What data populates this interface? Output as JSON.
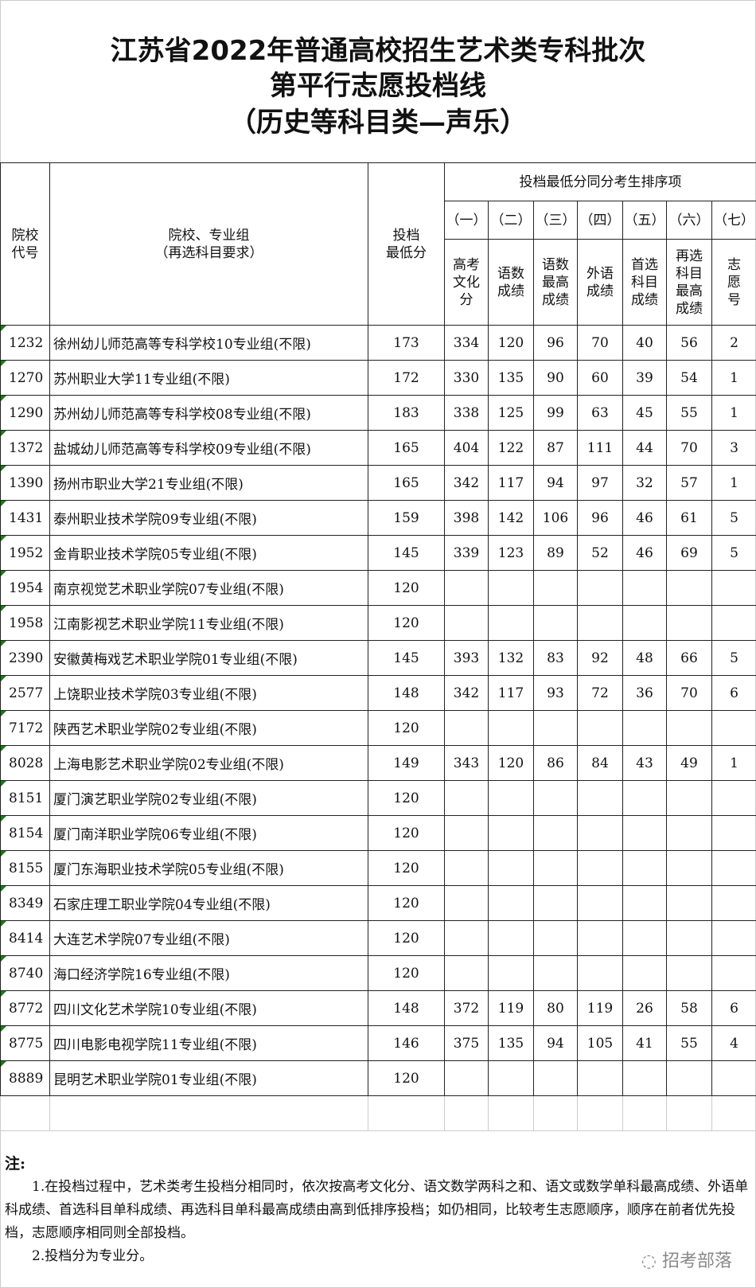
{
  "title": [
    "江苏省2022年普通高校招生艺术类专科批次",
    "第平行志愿投档线",
    "（历史等科目类—声乐）"
  ],
  "headers": {
    "code": "院校\n代号",
    "name": "院校、专业组\n（再选科目要求）",
    "min_score": "投档\n最低分",
    "tiebreak_group": "投档最低分同分考生排序项",
    "tiebreak_nums": [
      "（一）",
      "（二）",
      "（三）",
      "（四）",
      "（五）",
      "（六）",
      "（七）"
    ],
    "tiebreak_labels": [
      "高考\n文化\n分",
      "语数\n成绩",
      "语数\n最高\n成绩",
      "外语\n成绩",
      "首选\n科目\n成绩",
      "再选\n科目\n最高\n成绩",
      "志\n愿\n号"
    ]
  },
  "rows": [
    {
      "code": "1232",
      "name": "徐州幼儿师范高等专科学校10专业组(不限)",
      "score": "173",
      "t": [
        "334",
        "120",
        "96",
        "70",
        "40",
        "56",
        "2"
      ]
    },
    {
      "code": "1270",
      "name": "苏州职业大学11专业组(不限)",
      "score": "172",
      "t": [
        "330",
        "135",
        "90",
        "60",
        "39",
        "54",
        "1"
      ]
    },
    {
      "code": "1290",
      "name": "苏州幼儿师范高等专科学校08专业组(不限)",
      "score": "183",
      "t": [
        "338",
        "125",
        "99",
        "63",
        "45",
        "55",
        "1"
      ]
    },
    {
      "code": "1372",
      "name": "盐城幼儿师范高等专科学校09专业组(不限)",
      "score": "165",
      "t": [
        "404",
        "122",
        "87",
        "111",
        "44",
        "70",
        "3"
      ]
    },
    {
      "code": "1390",
      "name": "扬州市职业大学21专业组(不限)",
      "score": "165",
      "t": [
        "342",
        "117",
        "94",
        "97",
        "32",
        "57",
        "1"
      ]
    },
    {
      "code": "1431",
      "name": "泰州职业技术学院09专业组(不限)",
      "score": "159",
      "t": [
        "398",
        "142",
        "106",
        "96",
        "46",
        "61",
        "5"
      ]
    },
    {
      "code": "1952",
      "name": "金肯职业技术学院05专业组(不限)",
      "score": "145",
      "t": [
        "339",
        "123",
        "89",
        "52",
        "46",
        "69",
        "5"
      ]
    },
    {
      "code": "1954",
      "name": "南京视觉艺术职业学院07专业组(不限)",
      "score": "120",
      "t": [
        "",
        "",
        "",
        "",
        "",
        "",
        ""
      ]
    },
    {
      "code": "1958",
      "name": "江南影视艺术职业学院11专业组(不限)",
      "score": "120",
      "t": [
        "",
        "",
        "",
        "",
        "",
        "",
        ""
      ]
    },
    {
      "code": "2390",
      "name": "安徽黄梅戏艺术职业学院01专业组(不限)",
      "score": "145",
      "t": [
        "393",
        "132",
        "83",
        "92",
        "48",
        "66",
        "5"
      ]
    },
    {
      "code": "2577",
      "name": "上饶职业技术学院03专业组(不限)",
      "score": "148",
      "t": [
        "342",
        "117",
        "93",
        "72",
        "36",
        "70",
        "6"
      ]
    },
    {
      "code": "7172",
      "name": "陕西艺术职业学院02专业组(不限)",
      "score": "120",
      "t": [
        "",
        "",
        "",
        "",
        "",
        "",
        ""
      ]
    },
    {
      "code": "8028",
      "name": "上海电影艺术职业学院02专业组(不限)",
      "score": "149",
      "t": [
        "343",
        "120",
        "86",
        "84",
        "43",
        "49",
        "1"
      ]
    },
    {
      "code": "8151",
      "name": "厦门演艺职业学院02专业组(不限)",
      "score": "120",
      "t": [
        "",
        "",
        "",
        "",
        "",
        "",
        ""
      ]
    },
    {
      "code": "8154",
      "name": "厦门南洋职业学院06专业组(不限)",
      "score": "120",
      "t": [
        "",
        "",
        "",
        "",
        "",
        "",
        ""
      ]
    },
    {
      "code": "8155",
      "name": "厦门东海职业技术学院05专业组(不限)",
      "score": "120",
      "t": [
        "",
        "",
        "",
        "",
        "",
        "",
        ""
      ]
    },
    {
      "code": "8349",
      "name": "石家庄理工职业学院04专业组(不限)",
      "score": "120",
      "t": [
        "",
        "",
        "",
        "",
        "",
        "",
        ""
      ]
    },
    {
      "code": "8414",
      "name": "大连艺术学院07专业组(不限)",
      "score": "120",
      "t": [
        "",
        "",
        "",
        "",
        "",
        "",
        ""
      ]
    },
    {
      "code": "8740",
      "name": "海口经济学院16专业组(不限)",
      "score": "120",
      "t": [
        "",
        "",
        "",
        "",
        "",
        "",
        ""
      ]
    },
    {
      "code": "8772",
      "name": "四川文化艺术学院10专业组(不限)",
      "score": "148",
      "t": [
        "372",
        "119",
        "80",
        "119",
        "26",
        "58",
        "6"
      ]
    },
    {
      "code": "8775",
      "name": "四川电影电视学院11专业组(不限)",
      "score": "146",
      "t": [
        "375",
        "135",
        "94",
        "105",
        "41",
        "55",
        "4"
      ]
    },
    {
      "code": "8889",
      "name": "昆明艺术职业学院01专业组(不限)",
      "score": "120",
      "t": [
        "",
        "",
        "",
        "",
        "",
        "",
        ""
      ]
    }
  ],
  "notes": {
    "head": "注:",
    "items": [
      "1.在投档过程中，艺术类考生投档分相同时，依次按高考文化分、语文数学两科之和、语文或数学单科最高成绩、外语单科成绩、首选科目单科成绩、再选科目单科最高成绩由高到低排序投档；如仍相同，比较考生志愿顺序，顺序在前者优先投档，志愿顺序相同则全部投档。",
      "2.投档分为专业分。"
    ]
  },
  "watermark": "招考部落"
}
